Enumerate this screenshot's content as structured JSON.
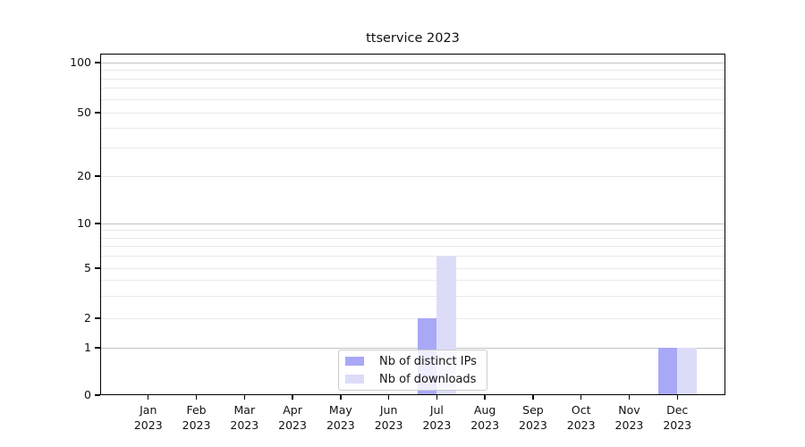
{
  "chart_data": {
    "type": "bar",
    "title": "ttservice 2023",
    "categories": [
      "Jan",
      "Feb",
      "Mar",
      "Apr",
      "May",
      "Jun",
      "Jul",
      "Aug",
      "Sep",
      "Oct",
      "Nov",
      "Dec"
    ],
    "x_year_label": "2023",
    "series": [
      {
        "name": "Nb of distinct IPs",
        "color": "#a8a8f7",
        "values": [
          0,
          0,
          0,
          0,
          0,
          0,
          2,
          0,
          0,
          0,
          0,
          1
        ]
      },
      {
        "name": "Nb of downloads",
        "color": "#dcdcf9",
        "values": [
          0,
          0,
          0,
          0,
          0,
          0,
          6,
          0,
          0,
          0,
          0,
          1
        ]
      }
    ],
    "y_ticks": [
      0,
      1,
      2,
      5,
      10,
      20,
      50,
      100
    ],
    "y_major_gridlines": [
      1,
      10,
      100
    ],
    "y_minor_gridlines": [
      2,
      3,
      4,
      5,
      6,
      7,
      8,
      9,
      20,
      30,
      40,
      50,
      60,
      70,
      80,
      90
    ],
    "ylim": [
      0,
      100
    ],
    "scale": "symlog",
    "grid": true,
    "legend": {
      "position": "lower-center",
      "entries": [
        "Nb of distinct IPs",
        "Nb of downloads"
      ]
    },
    "colors": {
      "bar_distinct_ips": "#a8a8f7",
      "bar_downloads": "#dcdcf9",
      "grid_major": "#c2c2c2",
      "grid_minor": "#e9e9e9",
      "axis": "#000000",
      "legend_border": "#cccccc",
      "text": "#111111",
      "background": "#ffffff"
    }
  }
}
